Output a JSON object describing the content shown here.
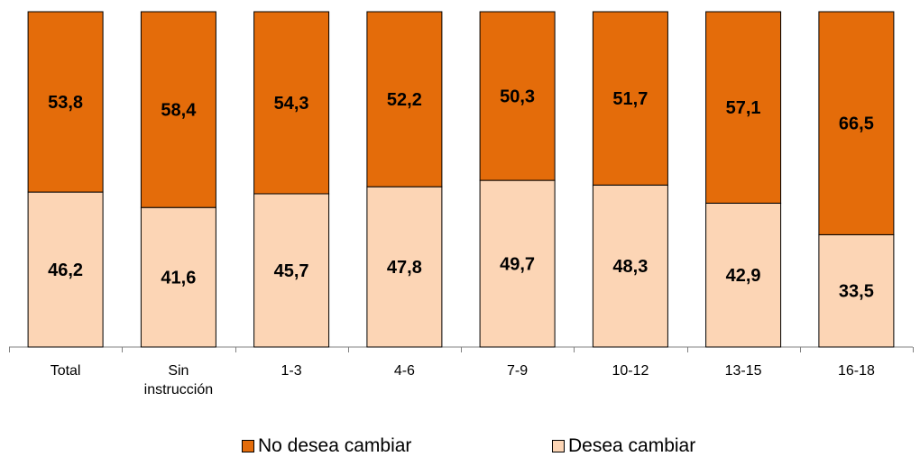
{
  "chart_data": {
    "type": "bar",
    "stacked": true,
    "normalized_percent": true,
    "categories": [
      "Total",
      "Sin\ninstrucción",
      "1-3",
      "4-6",
      "7-9",
      "10-12",
      "13-15",
      "16-18"
    ],
    "series": [
      {
        "name": "Desea cambiar",
        "values": [
          "46,2",
          "41,6",
          "45,7",
          "47,8",
          "49,7",
          "48,3",
          "42,9",
          "33,5"
        ],
        "color": "#FCD5B5"
      },
      {
        "name": "No desea cambiar",
        "values": [
          "53,8",
          "58,4",
          "54,3",
          "52,2",
          "50,3",
          "51,7",
          "57,1",
          "66,5"
        ],
        "color": "#E46C0A"
      }
    ],
    "ylim": [
      0,
      100
    ],
    "grid": false,
    "legend_position": "bottom"
  },
  "legend": [
    {
      "label": "No desea cambiar",
      "color": "#E46C0A"
    },
    {
      "label": "Desea cambiar",
      "color": "#FCD5B5"
    }
  ]
}
